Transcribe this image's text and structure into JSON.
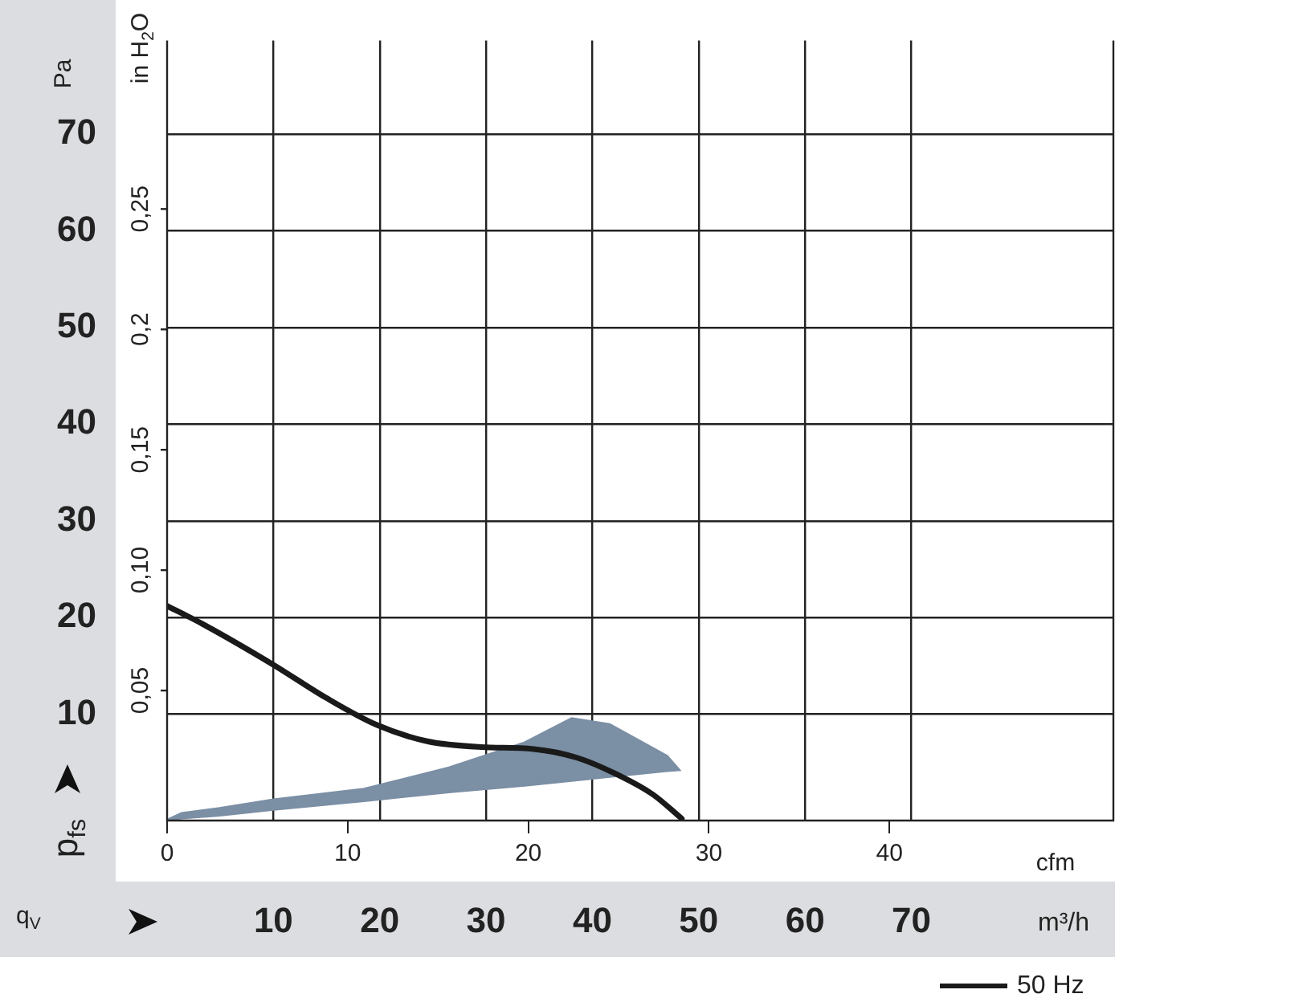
{
  "chart_data": {
    "type": "line",
    "xlabel": "cfm",
    "x2label": "m³/h",
    "ylabel": "Pa",
    "y2label": "in H$_{2}$O",
    "annotations": [
      "p$_{fs}$",
      "q$_{V}$"
    ],
    "xlim": [
      0,
      52.4
    ],
    "xticks": [
      0,
      10,
      20,
      30,
      40
    ],
    "x2lim": [
      0,
      89
    ],
    "x2ticks": [
      10,
      20,
      30,
      40,
      50,
      60,
      70
    ],
    "ylim": [
      -1,
      79.7
    ],
    "yticks": [
      10,
      20,
      30,
      40,
      50,
      60,
      70
    ],
    "y2lim": [
      -0.004,
      0.32
    ],
    "y2ticks": [
      {
        "value": 0.05,
        "label": "0,05"
      },
      {
        "value": 0.1,
        "label": "0,10"
      },
      {
        "value": 0.15,
        "label": "0,15"
      },
      {
        "value": 0.2,
        "label": "0,2"
      },
      {
        "value": 0.25,
        "label": "0,25"
      }
    ],
    "grid": true,
    "legend": "bottom right",
    "series": [
      {
        "type": "area",
        "color": "#7b8fa5",
        "x": [
          0,
          0.8,
          2.9,
          5.9,
          10.9,
          15.6,
          19.8,
          22.4,
          24.5,
          27.7,
          28.4,
          27.7,
          24.5,
          22.4,
          19.8,
          15.6,
          10.9,
          5.9,
          2.9,
          0.8,
          0
        ],
        "values": [
          -0.9,
          -0.2,
          0.3,
          1.2,
          2.3,
          4.5,
          7.1,
          9.6,
          9.0,
          5.7,
          4.2,
          4.1,
          3.5,
          3.1,
          2.6,
          1.9,
          1.0,
          0.1,
          -0.5,
          -0.8,
          -1.0
        ]
      },
      {
        "type": "line",
        "name": "50 Hz",
        "color": "#1a1a1a",
        "x": [
          0,
          2.0,
          5.9,
          8.8,
          11.6,
          14.4,
          17.4,
          20.3,
          22.7,
          25.1,
          26.9,
          28.5
        ],
        "values": [
          21.2,
          19.3,
          15.1,
          11.7,
          8.9,
          7.2,
          6.6,
          6.4,
          5.5,
          3.6,
          1.7,
          -0.8
        ]
      }
    ]
  }
}
